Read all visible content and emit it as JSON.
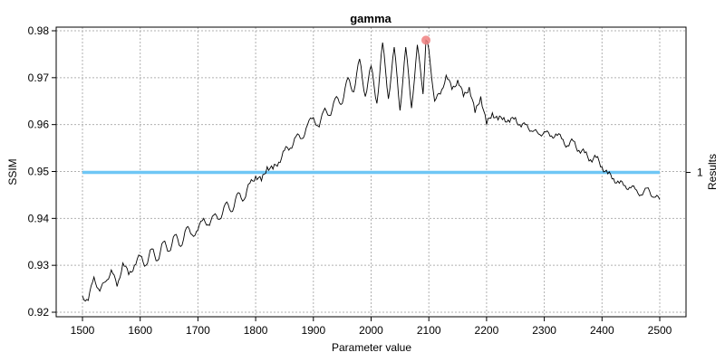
{
  "chart_data": {
    "type": "line",
    "title": "gamma",
    "xlabel": "Parameter value",
    "ylabel": "SSIM",
    "right_axis_label": "Results",
    "right_axis_ticks": [
      "1"
    ],
    "xlim": [
      1500,
      2500
    ],
    "ylim": [
      0.92,
      0.98
    ],
    "x_ticks": [
      1500,
      1600,
      1700,
      1800,
      1900,
      2000,
      2100,
      2200,
      2300,
      2400,
      2500
    ],
    "y_ticks": [
      0.92,
      0.93,
      0.94,
      0.95,
      0.96,
      0.97,
      0.98
    ],
    "x_tick_labels": [
      "1500",
      "1600",
      "1700",
      "1800",
      "1900",
      "2000",
      "2100",
      "2200",
      "2300",
      "2400",
      "2500"
    ],
    "y_tick_labels": [
      "0.92",
      "0.93",
      "0.94",
      "0.95",
      "0.96",
      "0.97",
      "0.98"
    ],
    "grid": true,
    "series": [
      {
        "color": "#000000",
        "x": [
          1500,
          1510,
          1520,
          1530,
          1540,
          1550,
          1560,
          1570,
          1580,
          1590,
          1600,
          1610,
          1620,
          1630,
          1640,
          1650,
          1660,
          1670,
          1680,
          1690,
          1700,
          1710,
          1720,
          1730,
          1740,
          1750,
          1760,
          1770,
          1780,
          1790,
          1800,
          1810,
          1820,
          1830,
          1840,
          1850,
          1860,
          1870,
          1880,
          1890,
          1900,
          1910,
          1920,
          1930,
          1940,
          1950,
          1960,
          1970,
          1980,
          1990,
          2000,
          2010,
          2020,
          2030,
          2040,
          2050,
          2060,
          2070,
          2080,
          2090,
          2095,
          2100,
          2110,
          2120,
          2130,
          2140,
          2150,
          2160,
          2170,
          2180,
          2190,
          2200,
          2210,
          2220,
          2230,
          2240,
          2250,
          2260,
          2270,
          2280,
          2290,
          2300,
          2310,
          2320,
          2330,
          2340,
          2350,
          2360,
          2370,
          2380,
          2390,
          2400,
          2410,
          2420,
          2430,
          2440,
          2450,
          2460,
          2470,
          2480,
          2490,
          2500
        ],
        "y": [
          0.9235,
          0.9225,
          0.9275,
          0.9245,
          0.9265,
          0.929,
          0.9255,
          0.9305,
          0.928,
          0.93,
          0.932,
          0.93,
          0.9335,
          0.931,
          0.935,
          0.933,
          0.9365,
          0.934,
          0.938,
          0.9365,
          0.9375,
          0.94,
          0.9385,
          0.941,
          0.94,
          0.9435,
          0.9415,
          0.9455,
          0.944,
          0.9475,
          0.949,
          0.948,
          0.951,
          0.9505,
          0.952,
          0.9545,
          0.955,
          0.9575,
          0.957,
          0.96,
          0.9615,
          0.9595,
          0.9635,
          0.962,
          0.966,
          0.9645,
          0.97,
          0.967,
          0.974,
          0.966,
          0.9725,
          0.9645,
          0.9775,
          0.9655,
          0.9765,
          0.963,
          0.9765,
          0.9635,
          0.977,
          0.9665,
          0.978,
          0.976,
          0.965,
          0.9665,
          0.9705,
          0.9675,
          0.9695,
          0.966,
          0.968,
          0.9625,
          0.966,
          0.96,
          0.9625,
          0.961,
          0.9615,
          0.9605,
          0.9615,
          0.9595,
          0.96,
          0.9585,
          0.958,
          0.9585,
          0.9575,
          0.958,
          0.957,
          0.9555,
          0.9565,
          0.9545,
          0.954,
          0.9525,
          0.953,
          0.951,
          0.9495,
          0.9485,
          0.9475,
          0.947,
          0.9465,
          0.946,
          0.945,
          0.9465,
          0.9445,
          0.944
        ]
      },
      {
        "color": "#6EC6F5",
        "x": [
          1500,
          2500
        ],
        "y": [
          0.9498,
          0.9498
        ]
      }
    ],
    "highlight_point": {
      "x": 2095,
      "y": 0.978,
      "color": "#F08080"
    }
  }
}
